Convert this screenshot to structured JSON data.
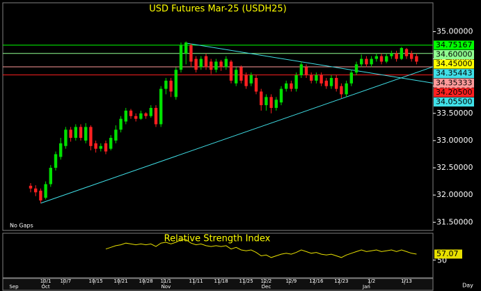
{
  "chart_data": [
    {
      "type": "candlestick",
      "title": "USD Futures Mar-25 (USDH25)",
      "note": "No Gaps",
      "x_unit": "Day",
      "categories": [
        null,
        null,
        null,
        "10/1",
        null,
        null,
        null,
        "10/7",
        null,
        null,
        null,
        null,
        null,
        "10/15",
        null,
        null,
        null,
        null,
        "10/21",
        null,
        null,
        null,
        null,
        "10/28",
        null,
        null,
        null,
        "11/1",
        null,
        null,
        null,
        null,
        null,
        "11/11",
        null,
        null,
        null,
        null,
        "11/18",
        null,
        null,
        null,
        null,
        "11/25",
        null,
        null,
        null,
        "12/2",
        null,
        null,
        null,
        null,
        "12/9",
        null,
        null,
        null,
        null,
        "12/16",
        null,
        null,
        null,
        null,
        "12/23",
        null,
        null,
        null,
        null,
        null,
        "1/2",
        null,
        null,
        null,
        null,
        null,
        null,
        "1/13",
        null,
        null
      ],
      "months": [
        "Sep",
        null,
        null,
        "Oct",
        null,
        null,
        null,
        null,
        null,
        null,
        null,
        null,
        null,
        null,
        null,
        null,
        null,
        null,
        null,
        null,
        null,
        null,
        null,
        null,
        null,
        null,
        null,
        "Nov",
        null,
        null,
        null,
        null,
        null,
        null,
        null,
        null,
        null,
        null,
        null,
        null,
        null,
        null,
        null,
        null,
        null,
        null,
        null,
        "Dec",
        null,
        null,
        null,
        null,
        null,
        null,
        null,
        null,
        null,
        null,
        null,
        null,
        null,
        null,
        null,
        null,
        null,
        null,
        null,
        "Jan",
        null,
        null,
        null,
        null,
        null,
        null,
        null,
        null,
        null
      ],
      "open": [
        32.17,
        32.12,
        32.08,
        31.95,
        32.2,
        32.5,
        32.7,
        32.9,
        33.2,
        33.05,
        33.25,
        33.0,
        33.25,
        32.95,
        32.85,
        32.95,
        32.85,
        33.0,
        33.2,
        33.35,
        33.55,
        33.45,
        33.4,
        33.5,
        33.45,
        33.6,
        33.3,
        33.95,
        34.1,
        33.8,
        34.3,
        34.6,
        34.75,
        34.5,
        34.35,
        34.55,
        34.45,
        34.3,
        34.45,
        34.35,
        34.45,
        34.05,
        34.35,
        34.2,
        34.05,
        34.15,
        33.9,
        33.65,
        33.8,
        33.6,
        33.7,
        33.95,
        34.05,
        33.95,
        34.2,
        34.35,
        34.2,
        34.1,
        34.2,
        34.1,
        34.0,
        34.15,
        34.0,
        33.85,
        34.05,
        34.25,
        34.4,
        34.5,
        34.4,
        34.5,
        34.55,
        34.45,
        34.55,
        34.6,
        34.5,
        34.68,
        34.6,
        34.55
      ],
      "high": [
        32.22,
        32.18,
        32.12,
        32.25,
        32.55,
        32.8,
        33.05,
        33.25,
        33.25,
        33.3,
        33.3,
        33.32,
        33.28,
        33.0,
        32.95,
        33.0,
        33.1,
        33.28,
        33.45,
        33.6,
        33.58,
        33.5,
        33.55,
        33.52,
        33.65,
        33.65,
        34.0,
        34.15,
        34.15,
        34.35,
        34.8,
        34.82,
        34.78,
        34.55,
        34.55,
        34.6,
        34.5,
        34.5,
        34.48,
        34.55,
        34.48,
        34.35,
        34.38,
        34.25,
        34.25,
        34.2,
        33.95,
        33.85,
        33.85,
        33.8,
        34.0,
        34.1,
        34.1,
        34.25,
        34.45,
        34.4,
        34.25,
        34.25,
        34.25,
        34.15,
        34.2,
        34.2,
        34.05,
        34.1,
        34.3,
        34.45,
        34.58,
        34.55,
        34.55,
        34.6,
        34.6,
        34.6,
        34.65,
        34.65,
        34.72,
        34.7,
        34.65,
        34.6
      ],
      "low": [
        32.05,
        31.98,
        31.85,
        31.92,
        32.15,
        32.45,
        32.65,
        32.85,
        32.98,
        33.0,
        33.0,
        32.95,
        32.82,
        32.78,
        32.8,
        32.75,
        32.82,
        32.95,
        33.15,
        33.3,
        33.4,
        33.35,
        33.38,
        33.4,
        33.42,
        33.25,
        33.25,
        33.85,
        33.8,
        33.75,
        34.25,
        34.4,
        34.35,
        34.25,
        34.3,
        34.3,
        34.22,
        34.25,
        34.28,
        34.3,
        34.05,
        34.0,
        34.05,
        33.95,
        34.0,
        33.85,
        33.55,
        33.55,
        33.5,
        33.55,
        33.65,
        33.9,
        33.9,
        33.9,
        34.15,
        34.15,
        34.05,
        34.05,
        34.0,
        33.95,
        33.95,
        33.9,
        33.78,
        33.8,
        34.0,
        34.2,
        34.35,
        34.35,
        34.35,
        34.45,
        34.4,
        34.42,
        34.5,
        34.45,
        34.48,
        34.5,
        34.45,
        34.4
      ],
      "close": [
        32.12,
        32.05,
        31.9,
        32.2,
        32.5,
        32.75,
        32.95,
        33.2,
        33.05,
        33.25,
        33.05,
        33.25,
        32.9,
        32.85,
        32.9,
        32.8,
        33.05,
        33.2,
        33.4,
        33.55,
        33.45,
        33.4,
        33.5,
        33.45,
        33.6,
        33.3,
        33.95,
        34.1,
        33.9,
        34.3,
        34.75,
        34.8,
        34.45,
        34.3,
        34.5,
        34.35,
        34.3,
        34.45,
        34.35,
        34.5,
        34.1,
        34.3,
        34.1,
        34.0,
        34.2,
        33.9,
        33.65,
        33.8,
        33.6,
        33.75,
        33.95,
        34.05,
        33.95,
        34.2,
        34.4,
        34.2,
        34.1,
        34.2,
        34.05,
        34.0,
        34.15,
        33.95,
        33.85,
        34.05,
        34.25,
        34.4,
        34.5,
        34.4,
        34.5,
        34.55,
        34.45,
        34.55,
        34.6,
        34.5,
        34.7,
        34.55,
        34.5,
        34.45
      ],
      "up_color": "#00e000",
      "down_color": "#ff2020",
      "ylim": [
        31.35,
        35.53
      ],
      "yticks": [
        {
          "value": 31.5,
          "label": "31.50000"
        },
        {
          "value": 32.0,
          "label": "32.00000"
        },
        {
          "value": 32.5,
          "label": "32.50000"
        },
        {
          "value": 33.0,
          "label": "33.00000"
        },
        {
          "value": 33.5,
          "label": "33.50000"
        },
        {
          "value": 34.0,
          "label": "34.00000"
        },
        {
          "value": 34.5,
          "label": "34.50000"
        },
        {
          "value": 35.0,
          "label": "35.00000"
        }
      ],
      "levels": [
        {
          "value": 34.75167,
          "label": "34.75167",
          "color": "#00ff00",
          "line": true
        },
        {
          "value": 34.6,
          "label": "34.60000",
          "color": "#90ff90",
          "line": true
        },
        {
          "value": 34.45,
          "label": "34.45000",
          "color": "#ffff00",
          "line": false
        },
        {
          "value": 34.35333,
          "label": "34.35333",
          "color": "#ff9a9a",
          "line": true
        },
        {
          "value": 34.205,
          "label": "34.20500",
          "color": "#ff2020",
          "line": true
        }
      ],
      "trendlines": [
        {
          "start_index": 2,
          "start_value": 31.85,
          "end_value": 34.35443,
          "end_label": "34.35443",
          "color": "#40e0e8"
        },
        {
          "start_index": 31,
          "start_value": 34.79,
          "end_value": 34.055,
          "end_label": "34.05500",
          "color": "#40e0e8"
        }
      ]
    },
    {
      "type": "line",
      "title": "Relative Strength Index",
      "color": "#e8e000",
      "values": [
        null,
        null,
        null,
        null,
        null,
        null,
        null,
        null,
        null,
        null,
        null,
        null,
        null,
        null,
        null,
        63,
        65,
        67,
        68,
        70,
        69,
        68,
        69,
        68,
        69,
        66,
        70,
        71,
        69,
        71,
        74,
        74,
        70,
        68,
        69,
        67,
        66,
        67,
        66,
        67,
        63,
        65,
        62,
        61,
        62,
        59,
        55,
        56,
        53,
        55,
        57,
        58,
        57,
        59,
        62,
        60,
        58,
        59,
        57,
        56,
        57,
        55,
        53,
        56,
        58,
        60,
        62,
        60,
        61,
        62,
        60,
        61,
        62,
        60,
        62,
        60,
        58,
        57.07
      ],
      "ylim": [
        30,
        80
      ],
      "yticks": [
        50
      ]
    }
  ]
}
